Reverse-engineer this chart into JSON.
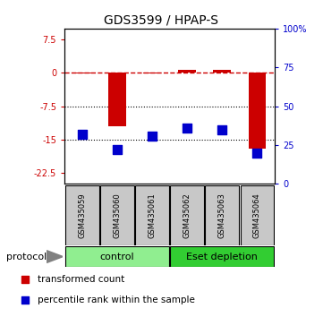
{
  "title": "GDS3599 / HPAP-S",
  "samples": [
    "GSM435059",
    "GSM435060",
    "GSM435061",
    "GSM435062",
    "GSM435063",
    "GSM435064"
  ],
  "transformed_count": [
    -0.15,
    -12.0,
    -0.1,
    0.6,
    0.7,
    -17.0
  ],
  "percentile_rank": [
    32,
    22,
    31,
    36,
    35,
    20
  ],
  "ylim_left": [
    -25,
    10
  ],
  "ylim_right": [
    0,
    100
  ],
  "yticks_left": [
    7.5,
    0,
    -7.5,
    -15,
    -22.5
  ],
  "ytick_labels_left": [
    "7.5",
    "0",
    "-7.5",
    "-15",
    "-22.5"
  ],
  "yticks_right_vals": [
    0,
    25,
    50,
    75,
    100
  ],
  "ytick_labels_right": [
    "0",
    "25",
    "50",
    "75",
    "100%"
  ],
  "dotted_hlines": [
    -7.5,
    -15
  ],
  "protocol_groups": [
    {
      "label": "control",
      "samples": [
        0,
        1,
        2
      ],
      "color": "#90ee90"
    },
    {
      "label": "Eset depletion",
      "samples": [
        3,
        4,
        5
      ],
      "color": "#32cd32"
    }
  ],
  "bar_color": "#cc0000",
  "dot_color": "#0000cc",
  "bar_width": 0.5,
  "dot_size": 45,
  "legend_labels": [
    "transformed count",
    "percentile rank within the sample"
  ],
  "legend_colors": [
    "#cc0000",
    "#0000cc"
  ],
  "protocol_label": "protocol",
  "background_color": "#ffffff",
  "sample_box_color": "#c8c8c8"
}
